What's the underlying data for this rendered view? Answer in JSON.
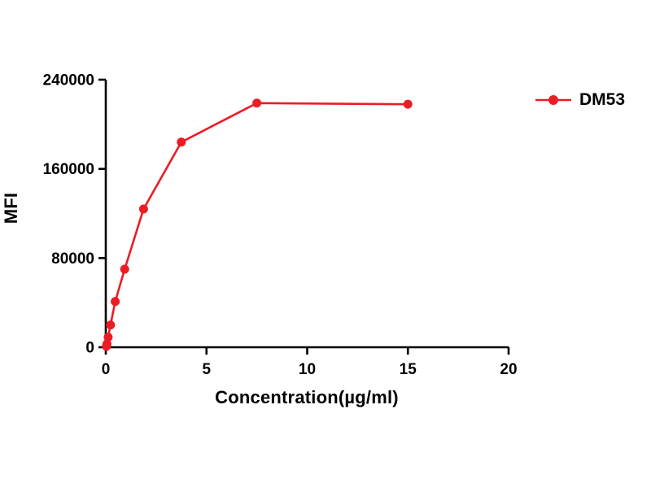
{
  "chart_data": {
    "type": "line",
    "title": "",
    "xlabel": "Concentration(µg/ml)",
    "ylabel": "MFI",
    "xlim": [
      0,
      20
    ],
    "ylim": [
      0,
      240000
    ],
    "xticks": [
      0,
      5,
      10,
      15,
      20
    ],
    "yticks": [
      0,
      80000,
      160000,
      240000
    ],
    "grid": false,
    "legend_position": "right",
    "axis_color": "#000000",
    "series": [
      {
        "name": "DM53",
        "color": "#EC1C24",
        "marker": "circle",
        "x": [
          0.0293,
          0.0586,
          0.1172,
          0.2344,
          0.4688,
          0.9375,
          1.875,
          3.75,
          7.5,
          15
        ],
        "y": [
          800,
          3000,
          9000,
          20000,
          41000,
          70000,
          124000,
          184000,
          219000,
          218000
        ]
      }
    ]
  }
}
